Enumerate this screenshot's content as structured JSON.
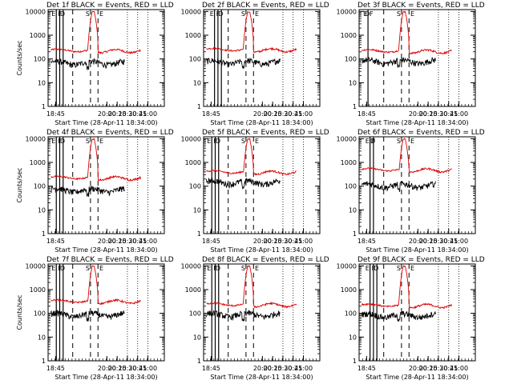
{
  "chart_data": {
    "type": "line",
    "ylabel": "Counts/sec",
    "xlabel": "Start Time (28-Apr-11 18:34:00)",
    "yscale": "log",
    "ylim": [
      1,
      12000
    ],
    "ytick_labels": [
      "1",
      "10",
      "100",
      "1000",
      "10000"
    ],
    "x_tick_labels": [
      "18:45",
      "20:00",
      "20:15",
      "20:30",
      "20:45",
      "21:00"
    ],
    "x_tick_minutes": [
      11,
      86,
      101,
      116,
      131,
      146
    ],
    "xlim_minutes": [
      0,
      170
    ],
    "colors": {
      "events": "#000000",
      "lld": "#dd0000"
    },
    "panels": [
      {
        "title": "Det 1f  BLACK = Events, RED = LLD",
        "red_base": 230,
        "black_base": 70,
        "markers": [
          "E",
          "F",
          "D",
          "S",
          "E"
        ],
        "solid_lines": [
          12,
          17,
          22
        ],
        "dashed_lines": [
          36,
          62,
          73
        ],
        "peak_at": 66,
        "peak_value": 10000,
        "black_end": 112
      },
      {
        "title": "Det 2f  BLACK = Events, RED = LLD",
        "red_base": 250,
        "black_base": 75,
        "markers": [
          "E",
          "F",
          "D",
          "S",
          "E"
        ],
        "solid_lines": [
          16,
          21,
          26
        ],
        "dashed_lines": [
          36,
          62,
          73
        ],
        "peak_at": 66,
        "peak_value": 10000,
        "black_end": 112
      },
      {
        "title": "Det 3f  BLACK = Events, RED = LLD",
        "red_base": 220,
        "black_base": 80,
        "markers": [
          "E",
          "F",
          "D",
          "S",
          "E"
        ],
        "solid_lines": [
          13
        ],
        "dashed_lines": [
          36,
          62,
          73
        ],
        "peak_at": 66,
        "peak_value": 10000,
        "black_end": 112
      },
      {
        "title": "Det 4f  BLACK = Events, RED = LLD",
        "red_base": 230,
        "black_base": 70,
        "markers": [
          "E",
          "F",
          "D",
          "S",
          "E"
        ],
        "solid_lines": [
          12,
          17,
          22
        ],
        "dashed_lines": [
          36,
          62,
          73
        ],
        "peak_at": 66,
        "peak_value": 10000,
        "black_end": 112
      },
      {
        "title": "Det 5f  BLACK = Events, RED = LLD",
        "red_base": 400,
        "black_base": 150,
        "markers": [
          "E",
          "F",
          "D",
          "S",
          "E"
        ],
        "solid_lines": [
          12,
          17,
          22
        ],
        "dashed_lines": [
          36,
          62,
          73
        ],
        "peak_at": 66,
        "peak_value": 10000,
        "black_end": 112
      },
      {
        "title": "Det 6f  BLACK = Events, RED = LLD",
        "red_base": 500,
        "black_base": 110,
        "markers": [
          "E",
          "F",
          "D",
          "S",
          "E"
        ],
        "solid_lines": [
          16,
          21
        ],
        "dashed_lines": [
          36,
          62,
          73
        ],
        "peak_at": 66,
        "peak_value": 10000,
        "black_end": 112
      },
      {
        "title": "Det 7f  BLACK = Events, RED = LLD",
        "red_base": 330,
        "black_base": 90,
        "markers": [
          "E",
          "F",
          "D",
          "S",
          "E"
        ],
        "solid_lines": [
          12,
          17,
          22
        ],
        "dashed_lines": [
          36,
          62,
          73
        ],
        "peak_at": 66,
        "peak_value": 10000,
        "black_end": 112
      },
      {
        "title": "Det 8f  BLACK = Events, RED = LLD",
        "red_base": 240,
        "black_base": 90,
        "markers": [
          "E",
          "F",
          "D",
          "S",
          "E"
        ],
        "solid_lines": [
          12,
          17,
          22
        ],
        "dashed_lines": [
          36,
          62,
          73
        ],
        "peak_at": 66,
        "peak_value": 10000,
        "black_end": 112
      },
      {
        "title": "Det 9f  BLACK = Events, RED = LLD",
        "red_base": 220,
        "black_base": 85,
        "markers": [
          "E",
          "F",
          "D",
          "S",
          "E"
        ],
        "solid_lines": [
          16,
          21,
          26
        ],
        "dashed_lines": [
          36,
          62,
          73
        ],
        "peak_at": 66,
        "peak_value": 10000,
        "black_end": 112
      }
    ]
  }
}
